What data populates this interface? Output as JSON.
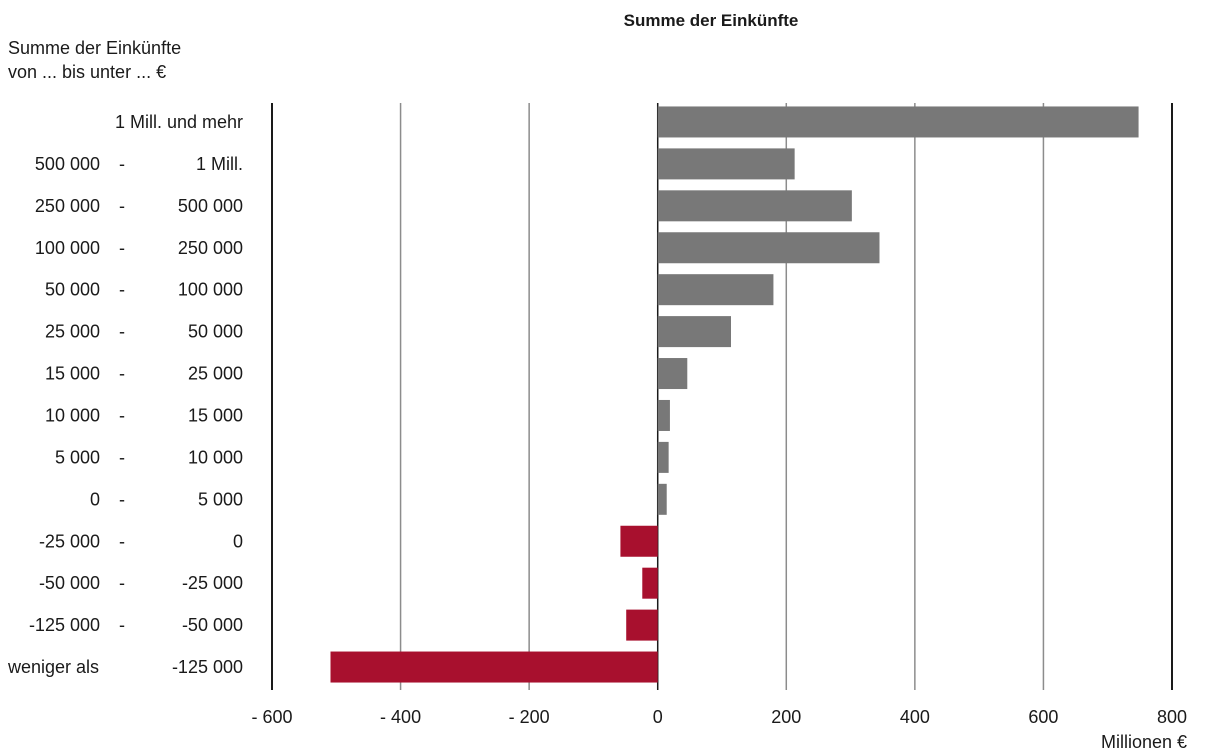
{
  "chart_data": {
    "type": "bar",
    "orientation": "horizontal",
    "title": "Summe der Einkünfte",
    "ylabel_lines": [
      "Summe der Einkünfte",
      "von ... bis unter ... €"
    ],
    "xlabel": "Millionen €",
    "xlim": [
      -600,
      800
    ],
    "x_ticks": [
      -600,
      -400,
      -200,
      0,
      200,
      400,
      600,
      800
    ],
    "x_tick_labels": [
      "- 600",
      "- 400",
      "- 200",
      "0",
      "200",
      "400",
      "600",
      "800"
    ],
    "grid": true,
    "categories": [
      {
        "from": "1 Mill. und mehr",
        "to": "",
        "value": 748
      },
      {
        "from": "500 000",
        "to": "1 Mill.",
        "value": 213
      },
      {
        "from": "250 000",
        "to": "500 000",
        "value": 302
      },
      {
        "from": "100 000",
        "to": "250 000",
        "value": 345
      },
      {
        "from": "50 000",
        "to": "100 000",
        "value": 180
      },
      {
        "from": "25 000",
        "to": "50 000",
        "value": 114
      },
      {
        "from": "15 000",
        "to": "25 000",
        "value": 46
      },
      {
        "from": "10 000",
        "to": "15 000",
        "value": 19
      },
      {
        "from": "5 000",
        "to": "10 000",
        "value": 17
      },
      {
        "from": "0",
        "to": "5 000",
        "value": 14
      },
      {
        "from": "-25 000",
        "to": "0",
        "value": -58
      },
      {
        "from": "-50 000",
        "to": "-25 000",
        "value": -24
      },
      {
        "from": "-125 000",
        "to": "-50 000",
        "value": -49
      },
      {
        "from": "weniger als",
        "to": "-125 000",
        "value": -509
      }
    ],
    "range_separator": "-",
    "colors": {
      "positive": "#787878",
      "negative": "#a8102e",
      "grid": "#8c8c8c",
      "frame": "#1a1a1a"
    }
  }
}
